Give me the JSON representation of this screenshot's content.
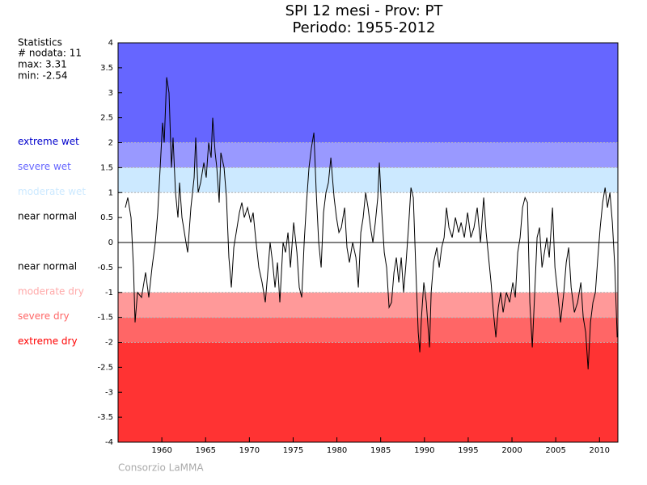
{
  "chart_data": {
    "type": "line",
    "title": "SPI 12 mesi - Prov: PT",
    "subtitle": "Periodo: 1955-2012",
    "credit": "Consorzio LaMMA",
    "statistics": {
      "title": "Statistics",
      "lines": [
        "# nodata: 11",
        "max: 3.31",
        "min: -2.54"
      ]
    },
    "classes": [
      {
        "label": "extreme wet",
        "from": 2,
        "to": 4,
        "color": "#6666ff",
        "label_color": "#0000cc"
      },
      {
        "label": "severe wet",
        "from": 1.5,
        "to": 2,
        "color": "#9999ff",
        "label_color": "#6666ff"
      },
      {
        "label": "moderate wet",
        "from": 1,
        "to": 1.5,
        "color": "#cce9ff",
        "label_color": "#cce9ff"
      },
      {
        "label": "near normal",
        "from": 0,
        "to": 1,
        "color": "#ffffff",
        "label_color": "#000000"
      },
      {
        "label": "near normal",
        "from": -1,
        "to": 0,
        "color": "#ffffff",
        "label_color": "#000000"
      },
      {
        "label": "moderate dry",
        "from": -1.5,
        "to": -1,
        "color": "#ff9999",
        "label_color": "#ffaaaa"
      },
      {
        "label": "severe dry",
        "from": -2,
        "to": -1.5,
        "color": "#ff6666",
        "label_color": "#ff6666"
      },
      {
        "label": "extreme dry",
        "from": -4,
        "to": -2,
        "color": "#ff3333",
        "label_color": "#ff0000"
      }
    ],
    "color": "#000000",
    "xlim": [
      1955,
      2012.1
    ],
    "xticks": [
      1960,
      1965,
      1970,
      1975,
      1980,
      1985,
      1990,
      1995,
      2000,
      2005,
      2010
    ],
    "ylim": [
      -4,
      4
    ],
    "yticks": [
      4,
      3.5,
      3,
      2.5,
      2,
      1.5,
      1,
      0.5,
      0,
      -0.5,
      -1,
      -1.5,
      -2,
      -2.5,
      -3,
      -3.5,
      -4
    ],
    "x": [
      1955.83,
      1956.11,
      1956.48,
      1956.76,
      1956.94,
      1957.22,
      1957.68,
      1958.14,
      1958.51,
      1958.88,
      1959.25,
      1959.53,
      1959.81,
      1960.08,
      1960.27,
      1960.55,
      1960.82,
      1961.1,
      1961.28,
      1961.56,
      1961.84,
      1962.02,
      1962.3,
      1962.76,
      1962.95,
      1963.32,
      1963.69,
      1963.87,
      1964.15,
      1964.43,
      1964.8,
      1965.07,
      1965.35,
      1965.63,
      1965.81,
      1966.09,
      1966.28,
      1966.55,
      1966.74,
      1967.11,
      1967.38,
      1967.66,
      1967.94,
      1968.22,
      1968.59,
      1968.86,
      1969.14,
      1969.42,
      1969.79,
      1970.16,
      1970.43,
      1970.71,
      1971.08,
      1971.45,
      1971.82,
      1972.1,
      1972.37,
      1972.65,
      1972.93,
      1973.21,
      1973.48,
      1973.85,
      1974.13,
      1974.41,
      1974.69,
      1975.06,
      1975.43,
      1975.7,
      1975.98,
      1976.26,
      1976.53,
      1976.81,
      1977.09,
      1977.37,
      1977.64,
      1977.92,
      1978.2,
      1978.47,
      1978.75,
      1979.03,
      1979.31,
      1979.49,
      1979.68,
      1979.95,
      1980.23,
      1980.51,
      1980.88,
      1981.15,
      1981.43,
      1981.8,
      1982.17,
      1982.45,
      1982.73,
      1983.0,
      1983.28,
      1983.56,
      1983.84,
      1984.11,
      1984.39,
      1984.67,
      1984.85,
      1985.13,
      1985.41,
      1985.68,
      1985.96,
      1986.24,
      1986.52,
      1986.79,
      1987.07,
      1987.35,
      1987.62,
      1987.9,
      1988.18,
      1988.46,
      1988.73,
      1989.01,
      1989.29,
      1989.47,
      1989.66,
      1989.93,
      1990.21,
      1990.58,
      1990.77,
      1991.04,
      1991.41,
      1991.69,
      1991.97,
      1992.25,
      1992.52,
      1992.8,
      1993.17,
      1993.54,
      1993.91,
      1994.19,
      1994.56,
      1994.93,
      1995.3,
      1995.66,
      1996.03,
      1996.4,
      1996.77,
      1997.05,
      1997.33,
      1997.61,
      1997.88,
      1998.16,
      1998.44,
      1998.71,
      1998.99,
      1999.36,
      1999.73,
      2000.1,
      2000.38,
      2000.66,
      2000.93,
      2001.21,
      2001.49,
      2001.77,
      2002.04,
      2002.32,
      2002.6,
      2002.87,
      2003.15,
      2003.43,
      2003.71,
      2003.98,
      2004.26,
      2004.63,
      2004.91,
      2005.28,
      2005.55,
      2005.92,
      2006.2,
      2006.48,
      2006.76,
      2007.13,
      2007.5,
      2007.87,
      2008.14,
      2008.42,
      2008.7,
      2008.97,
      2009.25,
      2009.53,
      2009.81,
      2010.08,
      2010.36,
      2010.64,
      2010.91,
      2011.19,
      2011.47,
      2011.75,
      2012.02
    ],
    "values": [
      0.7,
      0.9,
      0.5,
      -0.5,
      -1.6,
      -1.0,
      -1.1,
      -0.6,
      -1.1,
      -0.5,
      0.0,
      0.6,
      1.5,
      2.4,
      2.0,
      3.31,
      3.0,
      1.5,
      2.1,
      1.0,
      0.5,
      1.2,
      0.5,
      0.0,
      -0.2,
      0.7,
      1.3,
      2.1,
      1.0,
      1.2,
      1.6,
      1.3,
      2.0,
      1.7,
      2.5,
      1.8,
      1.5,
      0.8,
      1.8,
      1.5,
      0.9,
      -0.3,
      -0.9,
      -0.1,
      0.3,
      0.6,
      0.8,
      0.5,
      0.7,
      0.4,
      0.6,
      0.1,
      -0.5,
      -0.8,
      -1.2,
      -0.6,
      0.0,
      -0.4,
      -0.9,
      -0.4,
      -1.2,
      0.0,
      -0.2,
      0.2,
      -0.5,
      0.4,
      -0.2,
      -0.9,
      -1.1,
      0.0,
      0.8,
      1.5,
      1.9,
      2.2,
      1.0,
      0.0,
      -0.5,
      0.6,
      1.0,
      1.2,
      1.7,
      1.3,
      0.9,
      0.5,
      0.2,
      0.3,
      0.7,
      -0.1,
      -0.4,
      0.0,
      -0.3,
      -0.9,
      0.2,
      0.5,
      1.0,
      0.7,
      0.3,
      0.0,
      0.4,
      0.9,
      1.6,
      0.6,
      -0.2,
      -0.5,
      -1.3,
      -1.2,
      -0.6,
      -0.3,
      -0.8,
      -0.3,
      -1.0,
      -0.4,
      0.3,
      1.1,
      0.9,
      -0.5,
      -1.8,
      -2.2,
      -1.5,
      -0.8,
      -1.2,
      -2.1,
      -1.0,
      -0.4,
      -0.1,
      -0.5,
      -0.1,
      0.1,
      0.7,
      0.3,
      0.1,
      0.5,
      0.2,
      0.4,
      0.1,
      0.6,
      0.1,
      0.3,
      0.7,
      0.0,
      0.9,
      0.2,
      -0.3,
      -0.8,
      -1.4,
      -1.9,
      -1.3,
      -1.0,
      -1.4,
      -1.0,
      -1.2,
      -0.8,
      -1.1,
      -0.2,
      0.1,
      0.7,
      0.9,
      0.8,
      -1.2,
      -2.1,
      -1.0,
      0.1,
      0.3,
      -0.5,
      -0.2,
      0.1,
      -0.3,
      0.7,
      -0.5,
      -1.1,
      -1.6,
      -1.0,
      -0.4,
      -0.1,
      -0.9,
      -1.4,
      -1.2,
      -0.8,
      -1.5,
      -1.8,
      -2.54,
      -1.6,
      -1.2,
      -1.0,
      -0.3,
      0.3,
      0.8,
      1.1,
      0.7,
      1.0,
      0.4,
      -0.5,
      -1.9
    ]
  }
}
